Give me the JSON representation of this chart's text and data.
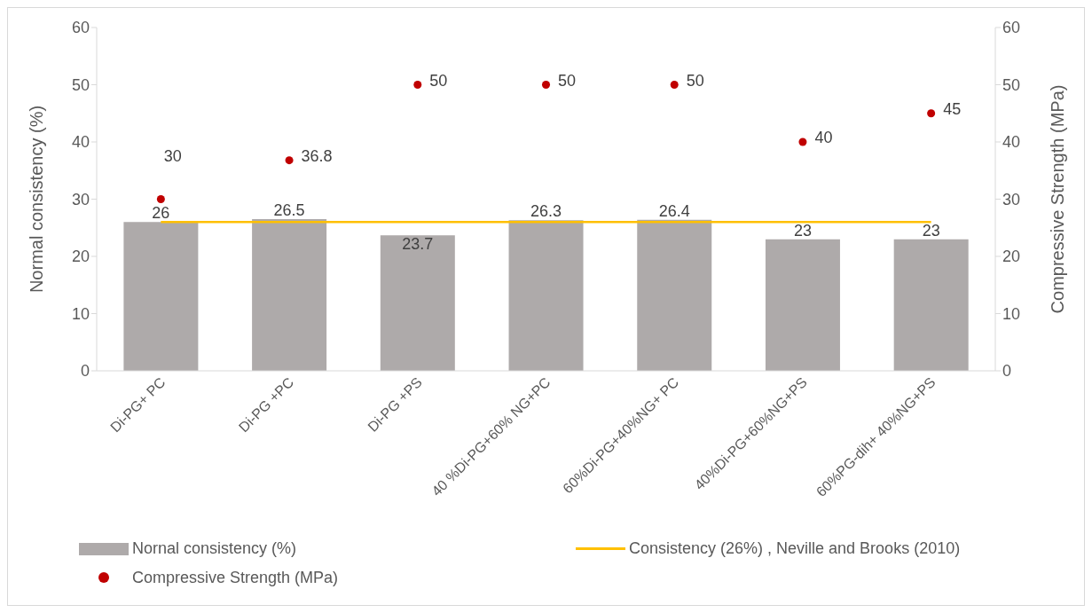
{
  "chart_data": {
    "type": "bar",
    "categories": [
      "Di-PG+ PC",
      "Di-PG +PC",
      "Di-PG +PS",
      "40 %Di-PG+60% NG+PC",
      "60%Di-PG+40%NG+ PC",
      "40%Di-PG+60%NG+PS",
      "60%PG-dih+ 40%NG+PS"
    ],
    "ylabel": "Normal consistency (%)",
    "y2label": "Compressive Strength (MPa)",
    "ylim": [
      0,
      60
    ],
    "yticks": [
      0,
      10,
      20,
      30,
      40,
      50,
      60
    ],
    "y2lim": [
      0,
      60
    ],
    "y2ticks": [
      0,
      10,
      20,
      30,
      40,
      50,
      60
    ],
    "grid": false,
    "legend": "bottom",
    "series": [
      {
        "name": "Nornal consistency (%)",
        "color": "#aeaaaa",
        "values": [
          26,
          26.5,
          23.7,
          26.3,
          26.4,
          23,
          23
        ],
        "value_labels": [
          "26",
          "26.5",
          "23.7",
          "26.3",
          "26.4",
          "23",
          "23"
        ]
      },
      {
        "type": "line",
        "name": "Consistency (26%) , Neville and Brooks (2010)",
        "color": "#ffc000",
        "values": [
          26,
          26,
          26,
          26,
          26,
          26,
          26
        ],
        "marker": "none"
      },
      {
        "type": "scatter",
        "name": "Compressive Strength (MPa)",
        "color": "#c00000",
        "axis": "y2",
        "marker": "circle",
        "values": [
          30,
          36.8,
          50,
          50,
          50,
          40,
          45
        ],
        "value_labels": [
          "30",
          "36.8",
          "50",
          "50",
          "50",
          "40",
          "45"
        ]
      }
    ]
  }
}
